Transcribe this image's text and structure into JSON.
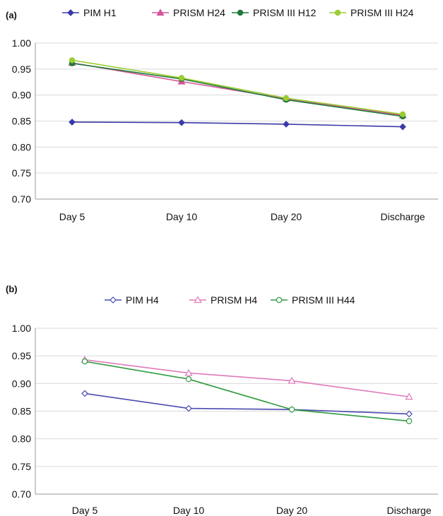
{
  "chart_data": [
    {
      "panel_label": "(a)",
      "type": "line",
      "categories": [
        "Day 5",
        "Day 10",
        "Day 20",
        "Discharge"
      ],
      "ylim": [
        0.7,
        1.0
      ],
      "yticks": [
        "0.70",
        "0.75",
        "0.80",
        "0.85",
        "0.90",
        "0.95",
        "1.00"
      ],
      "grid": "horizontal",
      "legend": "top",
      "series": [
        {
          "name": "PIM H1",
          "color": "#3a3aa8",
          "marker": "diamond-filled",
          "values": [
            0.848,
            0.847,
            0.844,
            0.839
          ]
        },
        {
          "name": "PRISM H24",
          "color": "#d4559a",
          "marker": "triangle-filled",
          "values": [
            0.962,
            0.926,
            0.893,
            0.861
          ]
        },
        {
          "name": "PRISM III H12",
          "color": "#1f7a3a",
          "marker": "circle-filled",
          "values": [
            0.961,
            0.931,
            0.891,
            0.859
          ]
        },
        {
          "name": "PRISM III H24",
          "color": "#9acd32",
          "marker": "circle-filled",
          "values": [
            0.967,
            0.933,
            0.894,
            0.863
          ]
        }
      ]
    },
    {
      "panel_label": "(b)",
      "type": "line",
      "categories": [
        "Day 5",
        "Day 10",
        "Day 20",
        "Discharge"
      ],
      "ylim": [
        0.7,
        1.0
      ],
      "yticks": [
        "0.70",
        "0.75",
        "0.80",
        "0.85",
        "0.90",
        "0.95",
        "1.00"
      ],
      "grid": "horizontal",
      "legend": "top",
      "series": [
        {
          "name": "PIM H4",
          "color": "#4a4ab0",
          "marker": "diamond-open",
          "values": [
            0.882,
            0.855,
            0.853,
            0.845
          ]
        },
        {
          "name": "PRISM H4",
          "color": "#e07ab8",
          "marker": "triangle-open",
          "values": [
            0.943,
            0.919,
            0.905,
            0.876
          ]
        },
        {
          "name": "PRISM III H44",
          "color": "#2e9a3e",
          "marker": "circle-open",
          "values": [
            0.94,
            0.908,
            0.853,
            0.832
          ]
        }
      ]
    }
  ]
}
